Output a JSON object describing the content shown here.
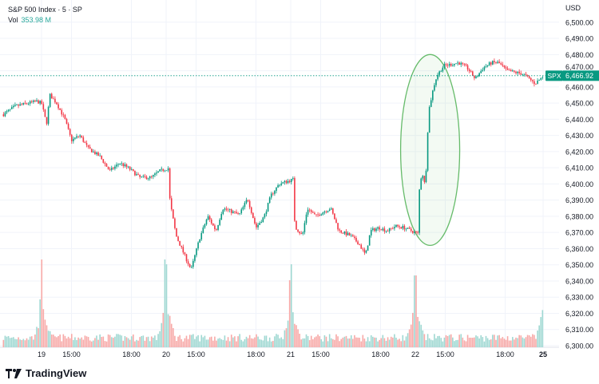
{
  "header": {
    "title": "S&P 500 Index · 5 · SP",
    "vol_label": "Vol",
    "vol_value": "353.98 M"
  },
  "brand": {
    "name": "TradingView",
    "icon": "tradingview-logo-icon"
  },
  "price_axis": {
    "currency": "USD"
  },
  "last_price": {
    "symbol": "SPX",
    "value": "6,466.92",
    "price": 6466.92,
    "color": "#089981"
  },
  "colors": {
    "up": "#089981",
    "down": "#f23645",
    "vol_up": "#9fd8d2",
    "vol_down": "#f7a9a7",
    "annotation": "#66bb6a",
    "grid": "#f0f3fa"
  },
  "chart_data": {
    "type": "candlestick",
    "interval": "5 min",
    "ylim": [
      6300,
      6500
    ],
    "yticks": [
      6500,
      6490,
      6480,
      6470,
      6460,
      6450,
      6440,
      6430,
      6420,
      6410,
      6400,
      6390,
      6380,
      6370,
      6360,
      6350,
      6340,
      6330,
      6320,
      6310,
      6300
    ],
    "ytick_labels": [
      "6,500.00",
      "6,490.00",
      "6,480.00",
      "6,470.00",
      "6,460.00",
      "6,450.00",
      "6,440.00",
      "6,430.00",
      "6,420.00",
      "6,410.00",
      "6,400.00",
      "6,390.00",
      "6,380.00",
      "6,370.00",
      "6,360.00",
      "6,350.00",
      "6,340.00",
      "6,330.00",
      "6,320.00",
      "6,310.00",
      "6,300.00"
    ],
    "xticks": [
      {
        "label": "19",
        "t": "19 13:30",
        "bold": false
      },
      {
        "label": "15:00",
        "t": "19 15:00",
        "bold": false
      },
      {
        "label": "18:00",
        "t": "19 18:00",
        "bold": false
      },
      {
        "label": "20",
        "t": "20 13:30",
        "bold": false
      },
      {
        "label": "15:00",
        "t": "20 15:00",
        "bold": false
      },
      {
        "label": "18:00",
        "t": "20 18:00",
        "bold": false
      },
      {
        "label": "21",
        "t": "21 13:30",
        "bold": false
      },
      {
        "label": "15:00",
        "t": "21 15:00",
        "bold": false
      },
      {
        "label": "18:00",
        "t": "21 18:00",
        "bold": false
      },
      {
        "label": "22",
        "t": "22 13:30",
        "bold": false
      },
      {
        "label": "15:00",
        "t": "22 15:00",
        "bold": false
      },
      {
        "label": "18:00",
        "t": "22 18:00",
        "bold": false
      },
      {
        "label": "25",
        "t": "25 13:30",
        "bold": true
      }
    ],
    "close_path": [
      [
        "18 17:50",
        6443
      ],
      [
        "18 18:25",
        6448
      ],
      [
        "18 19:05",
        6450
      ],
      [
        "18 19:30",
        6451
      ],
      [
        "19 13:30",
        6450
      ],
      [
        "19 13:45",
        6437
      ],
      [
        "19 13:55",
        6455
      ],
      [
        "19 14:15",
        6450
      ],
      [
        "19 14:40",
        6440
      ],
      [
        "19 15:00",
        6427
      ],
      [
        "19 15:25",
        6430
      ],
      [
        "19 15:50",
        6422
      ],
      [
        "19 16:25",
        6417
      ],
      [
        "19 16:55",
        6408
      ],
      [
        "19 17:25",
        6413
      ],
      [
        "19 17:50",
        6410
      ],
      [
        "19 18:25",
        6404
      ],
      [
        "19 19:00",
        6404
      ],
      [
        "19 19:25",
        6408
      ],
      [
        "19 19:55",
        6410
      ],
      [
        "20 13:35",
        6400
      ],
      [
        "20 13:45",
        6385
      ],
      [
        "20 14:00",
        6368
      ],
      [
        "20 14:25",
        6356
      ],
      [
        "20 14:45",
        6347
      ],
      [
        "20 15:10",
        6366
      ],
      [
        "20 15:35",
        6380
      ],
      [
        "20 16:00",
        6371
      ],
      [
        "20 16:20",
        6385
      ],
      [
        "20 16:45",
        6383
      ],
      [
        "20 17:10",
        6381
      ],
      [
        "20 17:35",
        6391
      ],
      [
        "20 18:00",
        6373
      ],
      [
        "20 18:25",
        6380
      ],
      [
        "20 18:45",
        6393
      ],
      [
        "20 19:10",
        6400
      ],
      [
        "20 19:55",
        6403
      ],
      [
        "21 13:30",
        6395
      ],
      [
        "21 13:45",
        6373
      ],
      [
        "21 14:05",
        6368
      ],
      [
        "21 14:20",
        6385
      ],
      [
        "21 14:45",
        6380
      ],
      [
        "21 15:10",
        6383
      ],
      [
        "21 15:30",
        6385
      ],
      [
        "21 15:55",
        6371
      ],
      [
        "21 16:30",
        6368
      ],
      [
        "21 16:55",
        6363
      ],
      [
        "21 17:15",
        6356
      ],
      [
        "21 17:30",
        6371
      ],
      [
        "21 17:55",
        6373
      ],
      [
        "21 18:20",
        6371
      ],
      [
        "21 18:45",
        6374
      ],
      [
        "21 19:10",
        6373
      ],
      [
        "21 19:55",
        6369
      ],
      [
        "22 13:35",
        6385
      ],
      [
        "22 13:50",
        6408
      ],
      [
        "22 14:00",
        6398
      ],
      [
        "22 14:10",
        6445
      ],
      [
        "22 14:25",
        6460
      ],
      [
        "22 14:35",
        6467
      ],
      [
        "22 14:55",
        6473
      ],
      [
        "22 15:20",
        6474
      ],
      [
        "22 15:40",
        6475
      ],
      [
        "22 16:05",
        6472
      ],
      [
        "22 16:30",
        6465
      ],
      [
        "22 16:55",
        6472
      ],
      [
        "22 17:20",
        6475
      ],
      [
        "22 17:40",
        6475
      ],
      [
        "22 18:05",
        6470
      ],
      [
        "22 18:30",
        6469
      ],
      [
        "22 18:55",
        6468
      ],
      [
        "22 19:30",
        6462
      ],
      [
        "22 19:55",
        6466.92
      ]
    ],
    "volume_relative": {
      "baseline": 0.06,
      "session_open": [
        0.55,
        0.52,
        0.52,
        0.45
      ],
      "session_close": [
        0.3,
        0.55,
        0.42,
        0.45,
        0.58
      ]
    },
    "annotation": {
      "type": "ellipse",
      "from": "22 13:30",
      "to": "22 14:40",
      "price_range": [
        6362,
        6480
      ]
    }
  }
}
